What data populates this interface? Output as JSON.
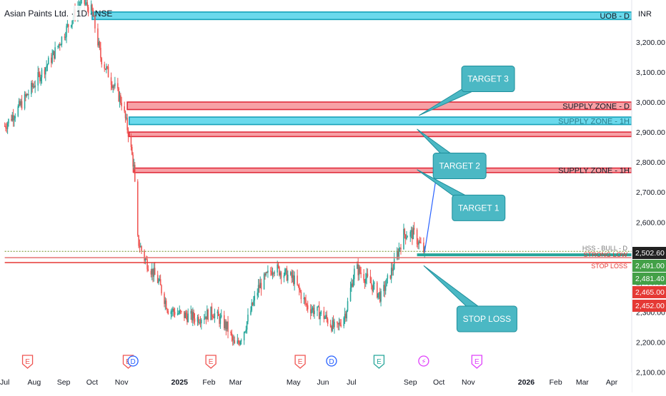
{
  "header": {
    "symbol_title": "Asian Paints Ltd. · 1D · NSE",
    "currency": "INR"
  },
  "colors": {
    "up": "#26a69a",
    "down": "#ef5350",
    "supply_fill": "#f7a1a6",
    "supply_border": "#e02c3b",
    "cyan_fill": "#6ad9ec",
    "cyan_border": "#17a2b8",
    "callout_fill": "#4bb8c4",
    "callout_border": "#1e8f9c",
    "green_label": "#43a047",
    "red_label": "#e53935",
    "dark_label": "#212121",
    "arrow": "#2962ff"
  },
  "chart_data": {
    "type": "candlestick",
    "title": "Asian Paints Ltd. · 1D · NSE",
    "xlabel": "",
    "ylabel": "",
    "ylim": [
      2080,
      3340
    ],
    "grid": false,
    "x_tick_labels": [
      "Jul",
      "Aug",
      "Sep",
      "Oct",
      "Nov",
      "2025",
      "Feb",
      "Mar",
      "May",
      "Jun",
      "Jul",
      "Sep",
      "Oct",
      "Nov",
      "2026",
      "Feb",
      "Mar",
      "Apr"
    ],
    "y_ticks": [
      2100,
      2200,
      2300,
      2400,
      2500,
      2600,
      2700,
      2800,
      2900,
      3000,
      3100,
      3200
    ],
    "y_tick_labels": [
      "2,100.00",
      "2,200.00",
      "2,300.00",
      "2,400.00",
      "2,500.00",
      "2,600.00",
      "2,700.00",
      "2,800.00",
      "2,900.00",
      "3,000.00",
      "3,100.00",
      "3,200.00"
    ],
    "price_path": [
      [
        "2024-07-01",
        2920
      ],
      [
        "2024-07-20",
        3000
      ],
      [
        "2024-08-05",
        3080
      ],
      [
        "2024-08-20",
        3150
      ],
      [
        "2024-09-05",
        3250
      ],
      [
        "2024-09-20",
        3340
      ],
      [
        "2024-10-01",
        3300
      ],
      [
        "2024-10-10",
        3150
      ],
      [
        "2024-10-20",
        3080
      ],
      [
        "2024-11-01",
        3000
      ],
      [
        "2024-11-08",
        2900
      ],
      [
        "2024-11-14",
        2780
      ],
      [
        "2024-11-18",
        2540
      ],
      [
        "2024-11-25",
        2480
      ],
      [
        "2024-12-10",
        2400
      ],
      [
        "2024-12-20",
        2310
      ],
      [
        "2025-01-05",
        2290
      ],
      [
        "2025-01-20",
        2280
      ],
      [
        "2025-02-05",
        2300
      ],
      [
        "2025-02-20",
        2250
      ],
      [
        "2025-03-01",
        2180
      ],
      [
        "2025-03-10",
        2240
      ],
      [
        "2025-03-25",
        2380
      ],
      [
        "2025-04-10",
        2450
      ],
      [
        "2025-05-01",
        2410
      ],
      [
        "2025-05-15",
        2320
      ],
      [
        "2025-06-01",
        2290
      ],
      [
        "2025-06-15",
        2240
      ],
      [
        "2025-06-25",
        2300
      ],
      [
        "2025-07-05",
        2450
      ],
      [
        "2025-07-20",
        2400
      ],
      [
        "2025-08-01",
        2350
      ],
      [
        "2025-08-15",
        2460
      ],
      [
        "2025-08-25",
        2560
      ],
      [
        "2025-09-05",
        2560
      ],
      [
        "2025-09-10",
        2530
      ],
      [
        "2025-09-16",
        2500
      ]
    ],
    "zones": [
      {
        "name": "UOB - D",
        "top": 3300,
        "bottom": 3275,
        "start": "2024-10-01",
        "style": "cyan"
      },
      {
        "name": "SUPPLY ZONE - D",
        "top": 3000,
        "bottom": 2975,
        "start": "2024-11-07",
        "style": "supply"
      },
      {
        "name": "SUPPLY ZONE - 1H",
        "top": 2950,
        "bottom": 2925,
        "start": "2024-11-09",
        "style": "cyan"
      },
      {
        "name": "",
        "top": 2900,
        "bottom": 2885,
        "start": "2024-11-09",
        "style": "supply"
      },
      {
        "name": "SUPPLY ZONE - 1H",
        "top": 2780,
        "bottom": 2765,
        "start": "2024-11-14",
        "style": "supply"
      }
    ],
    "levels": [
      {
        "name": "HSS - BULL - D",
        "price": 2502.6,
        "style": "dotted-green",
        "start": "2024-07-01"
      },
      {
        "name": "",
        "price": 2491.0,
        "style": "teal-thick",
        "start": "2025-09-08"
      },
      {
        "name": "STRONG LOW",
        "price": 2481.4,
        "style": "green",
        "start": "2024-07-01"
      },
      {
        "name": "STOP LOSS",
        "price": 2465.0,
        "style": "red",
        "start": "2024-07-01"
      }
    ],
    "price_labels": [
      {
        "value": 2502.6,
        "text": "2,502.60",
        "style": "dark_label"
      },
      {
        "value": 2491.0,
        "text": "2,491.00",
        "style": "green_label"
      },
      {
        "value": 2481.4,
        "text": "2,481.40",
        "style": "green_label"
      },
      {
        "value": 2465.0,
        "text": "2,465.00",
        "style": "red_label"
      },
      {
        "value": 2452.0,
        "text": "2,452.00",
        "style": "red_label"
      }
    ],
    "targets": [
      {
        "text": "TARGET 3",
        "box_date": "2025-10-25",
        "box_price": 3120,
        "pointer_date": "2025-09-10",
        "pointer_price": 2955
      },
      {
        "text": "TARGET 2",
        "box_date": "2025-09-25",
        "box_price": 2830,
        "pointer_date": "2025-09-08",
        "pointer_price": 2910
      },
      {
        "text": "TARGET 1",
        "box_date": "2025-10-15",
        "box_price": 2690,
        "pointer_date": "2025-09-08",
        "pointer_price": 2775
      },
      {
        "text": "STOP LOSS",
        "box_date": "2025-10-20",
        "box_price": 2320,
        "pointer_date": "2025-09-15",
        "pointer_price": 2455
      }
    ],
    "projection_arrow": {
      "from_date": "2025-09-16",
      "from_price": 2500,
      "to_date": "2025-09-28",
      "to_price": 2745
    },
    "events": [
      {
        "date": "2024-07-25",
        "type": "E",
        "color": "#ef5350",
        "glyph": "E"
      },
      {
        "date": "2024-11-08",
        "type": "E",
        "color": "#ef5350",
        "glyph": "E"
      },
      {
        "date": "2024-11-13",
        "type": "D",
        "color": "#2962ff",
        "glyph": "D"
      },
      {
        "date": "2025-02-03",
        "type": "E",
        "color": "#ef5350",
        "glyph": "E"
      },
      {
        "date": "2025-05-08",
        "type": "E",
        "color": "#ef5350",
        "glyph": "E"
      },
      {
        "date": "2025-06-10",
        "type": "D",
        "color": "#2962ff",
        "glyph": "D"
      },
      {
        "date": "2025-07-30",
        "type": "E",
        "color": "#26a69a",
        "glyph": "E"
      },
      {
        "date": "2025-09-15",
        "type": "split",
        "color": "#e040fb",
        "glyph": "⚡"
      },
      {
        "date": "2025-11-10",
        "type": "E",
        "color": "#e040fb",
        "glyph": "E"
      }
    ]
  }
}
